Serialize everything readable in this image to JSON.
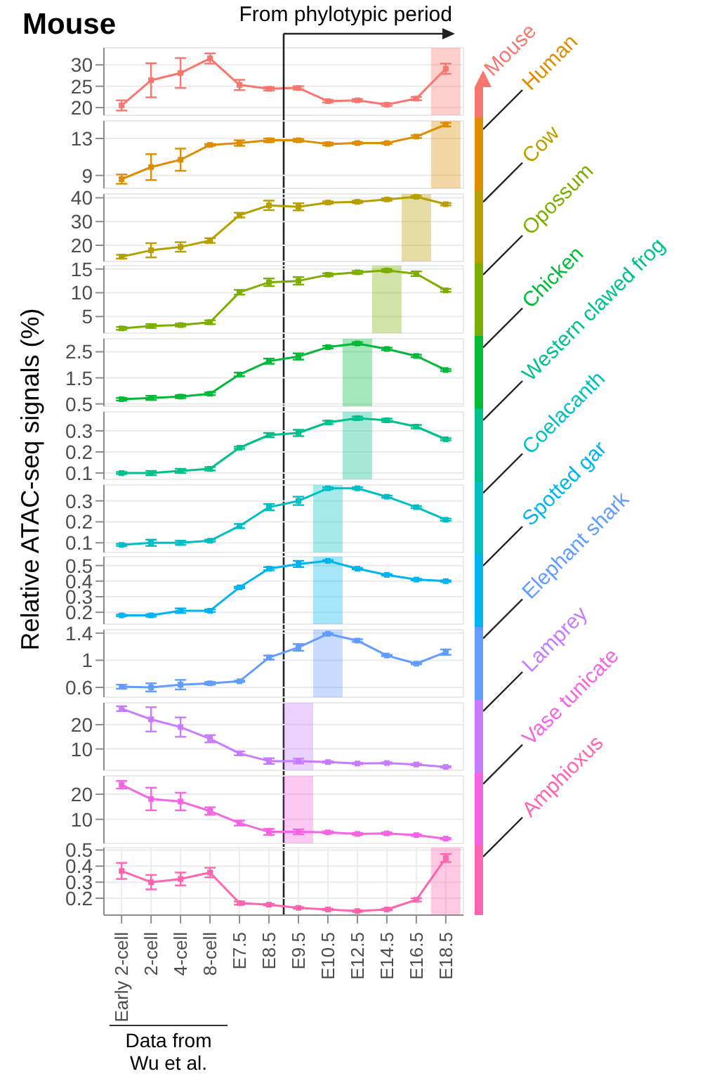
{
  "chart_data": [
    {
      "type": "line",
      "title": "Mouse",
      "categories": [
        "Early 2-cell",
        "2-cell",
        "4-cell",
        "8-cell",
        "E7.5",
        "E8.5",
        "E9.5",
        "E10.5",
        "E12.5",
        "E14.5",
        "E16.5",
        "E18.5"
      ],
      "tick_labels": "y",
      "grid": true,
      "marker": "square",
      "ylim": [
        18.2,
        34
      ],
      "yticks": [
        20,
        25,
        30
      ],
      "ref_lines": [
        {
          "axis": "x",
          "value": "E9.5",
          "label": "From phylotypic period"
        }
      ],
      "bands": [
        {
          "axis": "x",
          "from": "E18.5",
          "to": "E18.5"
        }
      ],
      "series": [
        {
          "name": "Mouse",
          "color": "#f8766d",
          "values": [
            20.5,
            26.4,
            28.1,
            31.5,
            25.3,
            24.4,
            24.6,
            21.5,
            21.7,
            20.7,
            22.1,
            29.1
          ],
          "errors": [
            1.2,
            4,
            3.5,
            1.2,
            1.2,
            0.4,
            0.4,
            0.3,
            0.3,
            0.3,
            0.4,
            1.2
          ]
        }
      ]
    },
    {
      "type": "line",
      "categories": [
        "Early 2-cell",
        "2-cell",
        "4-cell",
        "8-cell",
        "E7.5",
        "E8.5",
        "E9.5",
        "E10.5",
        "E12.5",
        "E14.5",
        "E16.5",
        "E18.5"
      ],
      "tick_labels": "y",
      "grid": true,
      "marker": "square",
      "ylim": [
        7.6,
        14.9
      ],
      "yticks": [
        9,
        13
      ],
      "bands": [
        {
          "axis": "x",
          "from": "E18.5",
          "to": "E18.5"
        }
      ],
      "series": [
        {
          "name": "Human",
          "color": "#de8c00",
          "values": [
            8.6,
            9.9,
            10.7,
            12.3,
            12.5,
            12.8,
            12.8,
            12.4,
            12.5,
            12.5,
            13.2,
            14.5
          ],
          "errors": [
            0.5,
            1.4,
            1.2,
            0.1,
            0.3,
            0.2,
            0.15,
            0.15,
            0.1,
            0.1,
            0.15,
            0.2
          ]
        }
      ]
    },
    {
      "type": "line",
      "categories": [
        "Early 2-cell",
        "2-cell",
        "4-cell",
        "8-cell",
        "E7.5",
        "E8.5",
        "E9.5",
        "E10.5",
        "E12.5",
        "E14.5",
        "E16.5",
        "E18.5"
      ],
      "tick_labels": "y",
      "grid": true,
      "marker": "square",
      "ylim": [
        13.2,
        41.6
      ],
      "yticks": [
        20,
        30,
        40
      ],
      "bands": [
        {
          "axis": "x",
          "from": "E16.5",
          "to": "E16.5"
        }
      ],
      "series": [
        {
          "name": "Cow",
          "color": "#b79f00",
          "values": [
            15.2,
            17.9,
            19.3,
            22,
            32.7,
            36.8,
            36.2,
            38,
            38.3,
            39.3,
            40.4,
            37.3
          ],
          "errors": [
            0.8,
            3,
            2,
            1,
            1,
            2,
            1.5,
            0.5,
            0.5,
            0.5,
            0.5,
            0.5
          ]
        }
      ]
    },
    {
      "type": "line",
      "categories": [
        "Early 2-cell",
        "2-cell",
        "4-cell",
        "8-cell",
        "E7.5",
        "E8.5",
        "E9.5",
        "E10.5",
        "E12.5",
        "E14.5",
        "E16.5",
        "E18.5"
      ],
      "tick_labels": "y",
      "grid": true,
      "marker": "square",
      "ylim": [
        1.5,
        15.7
      ],
      "yticks": [
        5,
        10,
        15
      ],
      "bands": [
        {
          "axis": "x",
          "from": "E14.5",
          "to": "E14.5"
        }
      ],
      "series": [
        {
          "name": "Opossum",
          "color": "#7cae00",
          "values": [
            2.5,
            3,
            3.2,
            3.8,
            10.1,
            12.2,
            12.5,
            13.8,
            14.3,
            14.7,
            14,
            10.5
          ],
          "errors": [
            0.3,
            0.4,
            0.3,
            0.4,
            0.5,
            0.8,
            0.8,
            0.3,
            0.3,
            0.3,
            0.5,
            0.3
          ]
        }
      ]
    },
    {
      "type": "line",
      "categories": [
        "Early 2-cell",
        "2-cell",
        "4-cell",
        "8-cell",
        "E7.5",
        "E8.5",
        "E9.5",
        "E10.5",
        "E12.5",
        "E14.5",
        "E16.5",
        "E18.5"
      ],
      "tick_labels": "y",
      "grid": true,
      "marker": "square",
      "ylim": [
        0.41,
        3.0
      ],
      "yticks": [
        0.5,
        1.5,
        2.5
      ],
      "bands": [
        {
          "axis": "x",
          "from": "E12.5",
          "to": "E12.5"
        }
      ],
      "series": [
        {
          "name": "Chicken",
          "color": "#00ba38",
          "values": [
            0.68,
            0.73,
            0.78,
            0.89,
            1.63,
            2.14,
            2.32,
            2.68,
            2.82,
            2.61,
            2.34,
            1.8
          ],
          "errors": [
            0.05,
            0.08,
            0.06,
            0.05,
            0.07,
            0.1,
            0.12,
            0.05,
            0.05,
            0.05,
            0.05,
            0.04
          ]
        }
      ]
    },
    {
      "type": "line",
      "ylabel": "Relative ATAC-seq signals (%)",
      "categories": [
        "Early 2-cell",
        "2-cell",
        "4-cell",
        "8-cell",
        "E7.5",
        "E8.5",
        "E9.5",
        "E10.5",
        "E12.5",
        "E14.5",
        "E16.5",
        "E18.5"
      ],
      "tick_labels": "y",
      "grid": true,
      "marker": "square",
      "ylim": [
        0.07,
        0.39
      ],
      "yticks": [
        0.1,
        0.2,
        0.3
      ],
      "bands": [
        {
          "axis": "x",
          "from": "E12.5",
          "to": "E12.5"
        }
      ],
      "series": [
        {
          "name": "Western clawed frog",
          "color": "#00c08b",
          "values": [
            0.1,
            0.1,
            0.11,
            0.12,
            0.22,
            0.28,
            0.29,
            0.34,
            0.36,
            0.35,
            0.32,
            0.26
          ],
          "errors": [
            0.005,
            0.01,
            0.01,
            0.008,
            0.005,
            0.01,
            0.015,
            0.008,
            0.008,
            0.008,
            0.008,
            0.005
          ]
        }
      ]
    },
    {
      "type": "line",
      "categories": [
        "Early 2-cell",
        "2-cell",
        "4-cell",
        "8-cell",
        "E7.5",
        "E8.5",
        "E9.5",
        "E10.5",
        "E12.5",
        "E14.5",
        "E16.5",
        "E18.5"
      ],
      "tick_labels": "y",
      "grid": true,
      "marker": "square",
      "ylim": [
        0.054,
        0.376
      ],
      "yticks": [
        0.1,
        0.2,
        0.3
      ],
      "bands": [
        {
          "axis": "x",
          "from": "E10.5",
          "to": "E10.5"
        }
      ],
      "series": [
        {
          "name": "Coelacanth",
          "color": "#00bfc4",
          "values": [
            0.09,
            0.1,
            0.1,
            0.11,
            0.18,
            0.27,
            0.3,
            0.36,
            0.36,
            0.32,
            0.27,
            0.21
          ],
          "errors": [
            0.005,
            0.015,
            0.01,
            0.005,
            0.01,
            0.015,
            0.02,
            0.005,
            0.005,
            0.005,
            0.005,
            0.005
          ]
        }
      ]
    },
    {
      "type": "line",
      "categories": [
        "Early 2-cell",
        "2-cell",
        "4-cell",
        "8-cell",
        "E7.5",
        "E8.5",
        "E9.5",
        "E10.5",
        "E12.5",
        "E14.5",
        "E16.5",
        "E18.5"
      ],
      "tick_labels": "y",
      "grid": true,
      "marker": "square",
      "ylim": [
        0.124,
        0.557
      ],
      "yticks": [
        0.2,
        0.3,
        0.4,
        0.5
      ],
      "bands": [
        {
          "axis": "x",
          "from": "E10.5",
          "to": "E10.5"
        }
      ],
      "series": [
        {
          "name": "Spotted gar",
          "color": "#00b4f0",
          "values": [
            0.18,
            0.18,
            0.21,
            0.21,
            0.36,
            0.48,
            0.51,
            0.53,
            0.48,
            0.44,
            0.41,
            0.4
          ],
          "errors": [
            0.005,
            0.008,
            0.015,
            0.008,
            0.005,
            0.01,
            0.02,
            0.005,
            0.005,
            0.005,
            0.005,
            0.005
          ]
        }
      ]
    },
    {
      "type": "line",
      "categories": [
        "Early 2-cell",
        "2-cell",
        "4-cell",
        "8-cell",
        "E7.5",
        "E8.5",
        "E9.5",
        "E10.5",
        "E12.5",
        "E14.5",
        "E16.5",
        "E18.5"
      ],
      "tick_labels": "y",
      "grid": true,
      "marker": "square",
      "ylim": [
        0.455,
        1.45
      ],
      "yticks": [
        0.6,
        1.0,
        1.4
      ],
      "bands": [
        {
          "axis": "x",
          "from": "E10.5",
          "to": "E10.5"
        }
      ],
      "series": [
        {
          "name": "Elephant shark",
          "color": "#619cff",
          "values": [
            0.61,
            0.6,
            0.64,
            0.66,
            0.69,
            1.04,
            1.19,
            1.39,
            1.29,
            1.07,
            0.95,
            1.12
          ],
          "errors": [
            0.03,
            0.06,
            0.07,
            0.02,
            0.01,
            0.03,
            0.05,
            0.01,
            0.02,
            0.01,
            0.01,
            0.04
          ]
        }
      ]
    },
    {
      "type": "line",
      "categories": [
        "Early 2-cell",
        "2-cell",
        "4-cell",
        "8-cell",
        "E7.5",
        "E8.5",
        "E9.5",
        "E10.5",
        "E12.5",
        "E14.5",
        "E16.5",
        "E18.5"
      ],
      "tick_labels": "y",
      "grid": true,
      "marker": "square",
      "ylim": [
        1.2,
        29
      ],
      "yticks": [
        10,
        20
      ],
      "bands": [
        {
          "axis": "x",
          "from": "E9.5",
          "to": "E9.5"
        }
      ],
      "series": [
        {
          "name": "Lamprey",
          "color": "#c77cff",
          "values": [
            26.6,
            22.2,
            19,
            14.2,
            8.2,
            5,
            5,
            4.6,
            4,
            4.2,
            3.6,
            2.6
          ],
          "errors": [
            1,
            5,
            4,
            1.5,
            0.8,
            1.2,
            1,
            0.3,
            0.3,
            0.3,
            0.3,
            0.3
          ]
        }
      ]
    },
    {
      "type": "line",
      "categories": [
        "Early 2-cell",
        "2-cell",
        "4-cell",
        "8-cell",
        "E7.5",
        "E8.5",
        "E9.5",
        "E10.5",
        "E12.5",
        "E14.5",
        "E16.5",
        "E18.5"
      ],
      "tick_labels": "y",
      "grid": true,
      "marker": "square",
      "ylim": [
        0.4,
        27.3
      ],
      "yticks": [
        10,
        20
      ],
      "bands": [
        {
          "axis": "x",
          "from": "E9.5",
          "to": "E9.5"
        }
      ],
      "series": [
        {
          "name": "Vase tunicate",
          "color": "#f564e3",
          "values": [
            23.8,
            18.1,
            17.1,
            13.3,
            8.5,
            5,
            5,
            4.8,
            4.2,
            4.4,
            3.7,
            2.3
          ],
          "errors": [
            1.5,
            4.5,
            3.5,
            1.5,
            1,
            1.2,
            1,
            0.4,
            0.4,
            0.4,
            0.3,
            0.3
          ]
        }
      ]
    },
    {
      "type": "line",
      "categories": [
        "Early 2-cell",
        "2-cell",
        "4-cell",
        "8-cell",
        "E7.5",
        "E8.5",
        "E9.5",
        "E10.5",
        "E12.5",
        "E14.5",
        "E16.5",
        "E18.5"
      ],
      "grid": true,
      "marker": "square",
      "ylim": [
        0.095,
        0.515
      ],
      "yticks": [
        0.2,
        0.3,
        0.4,
        0.5
      ],
      "annotations": [
        "Data from Wu et al."
      ],
      "bands": [
        {
          "axis": "x",
          "from": "E18.5",
          "to": "E18.5"
        }
      ],
      "series": [
        {
          "name": "Amphioxus",
          "color": "#ff64b0",
          "values": [
            0.37,
            0.3,
            0.32,
            0.36,
            0.17,
            0.16,
            0.14,
            0.13,
            0.12,
            0.13,
            0.19,
            0.45
          ],
          "errors": [
            0.05,
            0.045,
            0.04,
            0.03,
            0.01,
            0.005,
            0.005,
            0.005,
            0.005,
            0.005,
            0.01,
            0.025
          ]
        }
      ]
    }
  ]
}
